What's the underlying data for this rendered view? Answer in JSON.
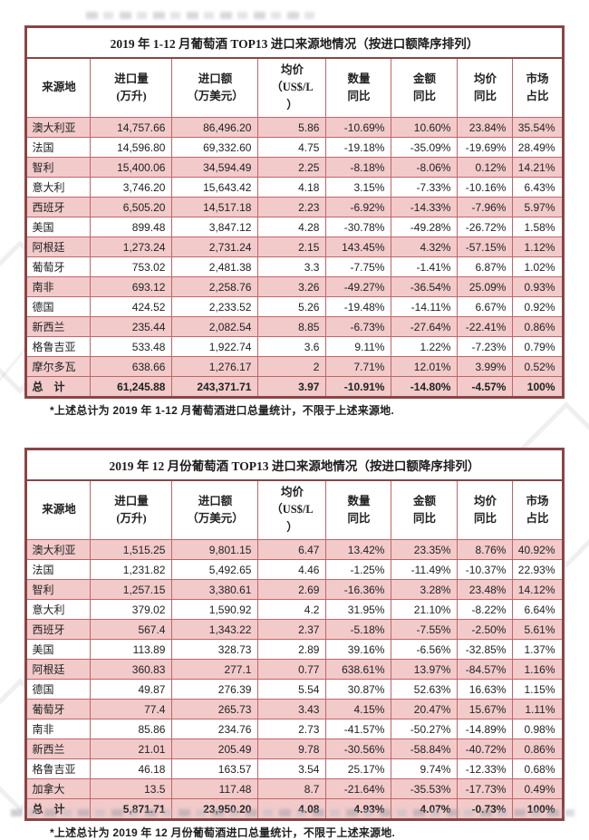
{
  "page": {
    "frame_color": "#8a4546",
    "grid_color": "#c06567",
    "row_pink": "#f2caca"
  },
  "tables": [
    {
      "title": "2019 年 1-12 月葡萄酒 TOP13 进口来源地情况（按进口额降序排列）",
      "headers": [
        "来源地",
        "进口量\n(万升)",
        "进口额\n（万美元）",
        "均价\n（US$/L\n）",
        "数量\n同比",
        "金额\n同比",
        "均价\n同比",
        "市场\n占比"
      ],
      "rows": [
        [
          "澳大利亚",
          "14,757.66",
          "86,496.20",
          "5.86",
          "-10.69%",
          "10.60%",
          "23.84%",
          "35.54%"
        ],
        [
          "法国",
          "14,596.80",
          "69,332.60",
          "4.75",
          "-19.18%",
          "-35.09%",
          "-19.69%",
          "28.49%"
        ],
        [
          "智利",
          "15,400.06",
          "34,594.49",
          "2.25",
          "-8.18%",
          "-8.06%",
          "0.12%",
          "14.21%"
        ],
        [
          "意大利",
          "3,746.20",
          "15,643.42",
          "4.18",
          "3.15%",
          "-7.33%",
          "-10.16%",
          "6.43%"
        ],
        [
          "西班牙",
          "6,505.20",
          "14,517.18",
          "2.23",
          "-6.92%",
          "-14.33%",
          "-7.96%",
          "5.97%"
        ],
        [
          "美国",
          "899.48",
          "3,847.12",
          "4.28",
          "-30.78%",
          "-49.28%",
          "-26.72%",
          "1.58%"
        ],
        [
          "阿根廷",
          "1,273.24",
          "2,731.24",
          "2.15",
          "143.45%",
          "4.32%",
          "-57.15%",
          "1.12%"
        ],
        [
          "葡萄牙",
          "753.02",
          "2,481.38",
          "3.3",
          "-7.75%",
          "-1.41%",
          "6.87%",
          "1.02%"
        ],
        [
          "南非",
          "693.12",
          "2,258.76",
          "3.26",
          "-49.27%",
          "-36.54%",
          "25.09%",
          "0.93%"
        ],
        [
          "德国",
          "424.52",
          "2,233.52",
          "5.26",
          "-19.48%",
          "-14.11%",
          "6.67%",
          "0.92%"
        ],
        [
          "新西兰",
          "235.44",
          "2,082.54",
          "8.85",
          "-6.73%",
          "-27.64%",
          "-22.41%",
          "0.86%"
        ],
        [
          "格鲁吉亚",
          "533.48",
          "1,922.74",
          "3.6",
          "9.11%",
          "1.22%",
          "-7.23%",
          "0.79%"
        ],
        [
          "摩尔多瓦",
          "638.66",
          "1,276.17",
          "2",
          "7.71%",
          "12.01%",
          "3.99%",
          "0.52%"
        ]
      ],
      "total_row": [
        "总　计",
        "61,245.88",
        "243,371.71",
        "3.97",
        "-10.91%",
        "-14.80%",
        "-4.57%",
        "100%"
      ],
      "footnote": "*上述总计为 2019 年 1-12 月葡萄酒进口总量统计，不限于上述来源地."
    },
    {
      "title": "2019 年 12 月份葡萄酒 TOP13 进口来源地情况（按进口额降序排列）",
      "headers": [
        "来源地",
        "进口量\n(万升)",
        "进口额\n（万美元）",
        "均价\n（US$/L\n）",
        "数量\n同比",
        "金额\n同比",
        "均价\n同比",
        "市场\n占比"
      ],
      "rows": [
        [
          "澳大利亚",
          "1,515.25",
          "9,801.15",
          "6.47",
          "13.42%",
          "23.35%",
          "8.76%",
          "40.92%"
        ],
        [
          "法国",
          "1,231.82",
          "5,492.65",
          "4.46",
          "-1.25%",
          "-11.49%",
          "-10.37%",
          "22.93%"
        ],
        [
          "智利",
          "1,257.15",
          "3,380.61",
          "2.69",
          "-16.36%",
          "3.28%",
          "23.48%",
          "14.12%"
        ],
        [
          "意大利",
          "379.02",
          "1,590.92",
          "4.2",
          "31.95%",
          "21.10%",
          "-8.22%",
          "6.64%"
        ],
        [
          "西班牙",
          "567.4",
          "1,343.22",
          "2.37",
          "-5.18%",
          "-7.55%",
          "-2.50%",
          "5.61%"
        ],
        [
          "美国",
          "113.89",
          "328.73",
          "2.89",
          "39.16%",
          "-6.56%",
          "-32.85%",
          "1.37%"
        ],
        [
          "阿根廷",
          "360.83",
          "277.1",
          "0.77",
          "638.61%",
          "13.97%",
          "-84.57%",
          "1.16%"
        ],
        [
          "德国",
          "49.87",
          "276.39",
          "5.54",
          "30.87%",
          "52.63%",
          "16.63%",
          "1.15%"
        ],
        [
          "葡萄牙",
          "77.4",
          "265.73",
          "3.43",
          "4.15%",
          "20.47%",
          "15.67%",
          "1.11%"
        ],
        [
          "南非",
          "85.86",
          "234.76",
          "2.73",
          "-41.57%",
          "-50.27%",
          "-14.89%",
          "0.98%"
        ],
        [
          "新西兰",
          "21.01",
          "205.49",
          "9.78",
          "-30.56%",
          "-58.84%",
          "-40.72%",
          "0.86%"
        ],
        [
          "格鲁吉亚",
          "46.18",
          "163.57",
          "3.54",
          "25.17%",
          "9.74%",
          "-12.33%",
          "0.68%"
        ],
        [
          "加拿大",
          "13.5",
          "117.48",
          "8.7",
          "-21.64%",
          "-35.53%",
          "-17.73%",
          "0.49%"
        ]
      ],
      "total_row": [
        "总　计",
        "5,871.71",
        "23,950.20",
        "4.08",
        "4.93%",
        "4.07%",
        "-0.73%",
        "100%"
      ],
      "footnote": "*上述总计为 2019 年 12 月份葡萄酒进口总量统计，不限于上述来源地."
    }
  ]
}
